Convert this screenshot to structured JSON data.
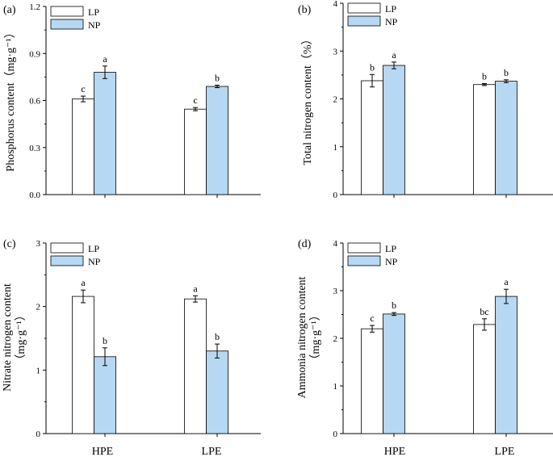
{
  "figure": {
    "x_categories": [
      "HPE",
      "LPE"
    ],
    "legend": [
      "LP",
      "NP"
    ],
    "colors": {
      "LP": "#ffffff",
      "NP": "#b6d8f2",
      "axis": "#000000"
    }
  },
  "chart_data": [
    {
      "type": "bar",
      "panel_label": "(a)",
      "ylabel": "Phosphorus content（mg·g⁻¹）",
      "ylim": [
        0,
        1.2
      ],
      "yticks": [
        "0.0",
        "0.3",
        "0.6",
        "0.9",
        "1.2"
      ],
      "categories": [
        "HPE",
        "LPE"
      ],
      "series": [
        {
          "name": "LP",
          "values": [
            0.61,
            0.545
          ],
          "errors": [
            0.018,
            0.01
          ],
          "letters": [
            "c",
            "c"
          ]
        },
        {
          "name": "NP",
          "values": [
            0.78,
            0.69
          ],
          "errors": [
            0.04,
            0.008
          ],
          "letters": [
            "a",
            "b"
          ]
        }
      ]
    },
    {
      "type": "bar",
      "panel_label": "(b)",
      "ylabel": "Total nitrogen content（%）",
      "ylim": [
        0,
        4
      ],
      "yticks": [
        "0",
        "1",
        "2",
        "3",
        "4"
      ],
      "categories": [
        "HPE",
        "LPE"
      ],
      "series": [
        {
          "name": "LP",
          "values": [
            2.38,
            2.3
          ],
          "errors": [
            0.13,
            0.02
          ],
          "letters": [
            "b",
            "b"
          ]
        },
        {
          "name": "NP",
          "values": [
            2.7,
            2.37
          ],
          "errors": [
            0.07,
            0.03
          ],
          "letters": [
            "a",
            "b"
          ]
        }
      ]
    },
    {
      "type": "bar",
      "panel_label": "(c)",
      "ylabel": "Nitrate nitrogen content",
      "ylabel2": "（mg·g⁻¹）",
      "ylim": [
        0,
        3
      ],
      "yticks": [
        "0",
        "1",
        "2",
        "3"
      ],
      "categories": [
        "HPE",
        "LPE"
      ],
      "series": [
        {
          "name": "LP",
          "values": [
            2.16,
            2.12
          ],
          "errors": [
            0.1,
            0.05
          ],
          "letters": [
            "a",
            "a"
          ]
        },
        {
          "name": "NP",
          "values": [
            1.21,
            1.3
          ],
          "errors": [
            0.14,
            0.11
          ],
          "letters": [
            "b",
            "b"
          ]
        }
      ]
    },
    {
      "type": "bar",
      "panel_label": "(d)",
      "ylabel": "Ammonia nitrogen content",
      "ylabel2": "（mg·g⁻¹）",
      "ylim": [
        0,
        4
      ],
      "yticks": [
        "0",
        "1",
        "2",
        "3",
        "4"
      ],
      "categories": [
        "HPE",
        "LPE"
      ],
      "series": [
        {
          "name": "LP",
          "values": [
            2.2,
            2.29
          ],
          "errors": [
            0.07,
            0.12
          ],
          "letters": [
            "c",
            "bc"
          ]
        },
        {
          "name": "NP",
          "values": [
            2.51,
            2.88
          ],
          "errors": [
            0.03,
            0.15
          ],
          "letters": [
            "b",
            "a"
          ]
        }
      ]
    }
  ]
}
